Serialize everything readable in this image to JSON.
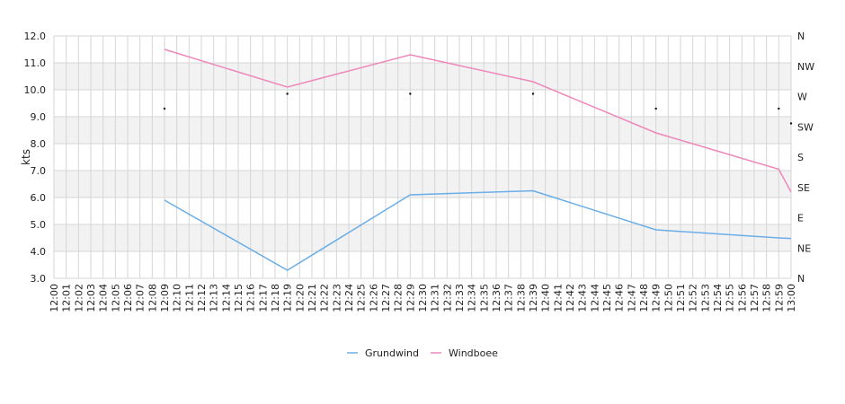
{
  "chart_data": {
    "type": "line",
    "ylabel": "kts",
    "ylim": [
      3.0,
      12.0
    ],
    "y_ticks": [
      "3.0",
      "4.0",
      "5.0",
      "6.0",
      "7.0",
      "8.0",
      "9.0",
      "10.0",
      "11.0",
      "12.0"
    ],
    "right_axis_ticks": [
      "N",
      "NE",
      "E",
      "SE",
      "S",
      "SW",
      "W",
      "NW",
      "N"
    ],
    "x_ticks": [
      "12:00",
      "12:01",
      "12:02",
      "12:03",
      "12:04",
      "12:05",
      "12:06",
      "12:07",
      "12:08",
      "12:09",
      "12:10",
      "12:11",
      "12:12",
      "12:13",
      "12:14",
      "12:15",
      "12:16",
      "12:17",
      "12:18",
      "12:19",
      "12:20",
      "12:21",
      "12:22",
      "12:23",
      "12:24",
      "12:25",
      "12:26",
      "12:27",
      "12:28",
      "12:29",
      "12:30",
      "12:31",
      "12:32",
      "12:33",
      "12:34",
      "12:35",
      "12:36",
      "12:37",
      "12:38",
      "12:39",
      "12:40",
      "12:41",
      "12:42",
      "12:43",
      "12:44",
      "12:45",
      "12:46",
      "12:47",
      "12:48",
      "12:49",
      "12:50",
      "12:51",
      "12:52",
      "12:53",
      "12:54",
      "12:55",
      "12:56",
      "12:57",
      "12:58",
      "12:59",
      "13:00"
    ],
    "grid": true,
    "legend_position": "bottom",
    "series": [
      {
        "name": "Grundwind",
        "color": "#6aaee8",
        "points": [
          [
            "12:09",
            5.9
          ],
          [
            "12:19",
            3.3
          ],
          [
            "12:29",
            6.1
          ],
          [
            "12:39",
            6.25
          ],
          [
            "12:49",
            4.8
          ],
          [
            "12:59",
            4.5
          ],
          [
            "13:00",
            4.48
          ]
        ]
      },
      {
        "name": "Windboee",
        "color": "#ee88bb",
        "points": [
          [
            "12:09",
            11.5
          ],
          [
            "12:19",
            10.1
          ],
          [
            "12:29",
            11.3
          ],
          [
            "12:39",
            10.3
          ],
          [
            "12:49",
            8.4
          ],
          [
            "12:59",
            7.05
          ],
          [
            "13:00",
            6.2
          ]
        ]
      }
    ],
    "direction_points": [
      [
        "12:09",
        9.3
      ],
      [
        "12:19",
        9.85
      ],
      [
        "12:29",
        9.85
      ],
      [
        "12:39",
        9.85
      ],
      [
        "12:49",
        9.3
      ],
      [
        "12:59",
        9.3
      ],
      [
        "13:00",
        8.75
      ]
    ]
  }
}
